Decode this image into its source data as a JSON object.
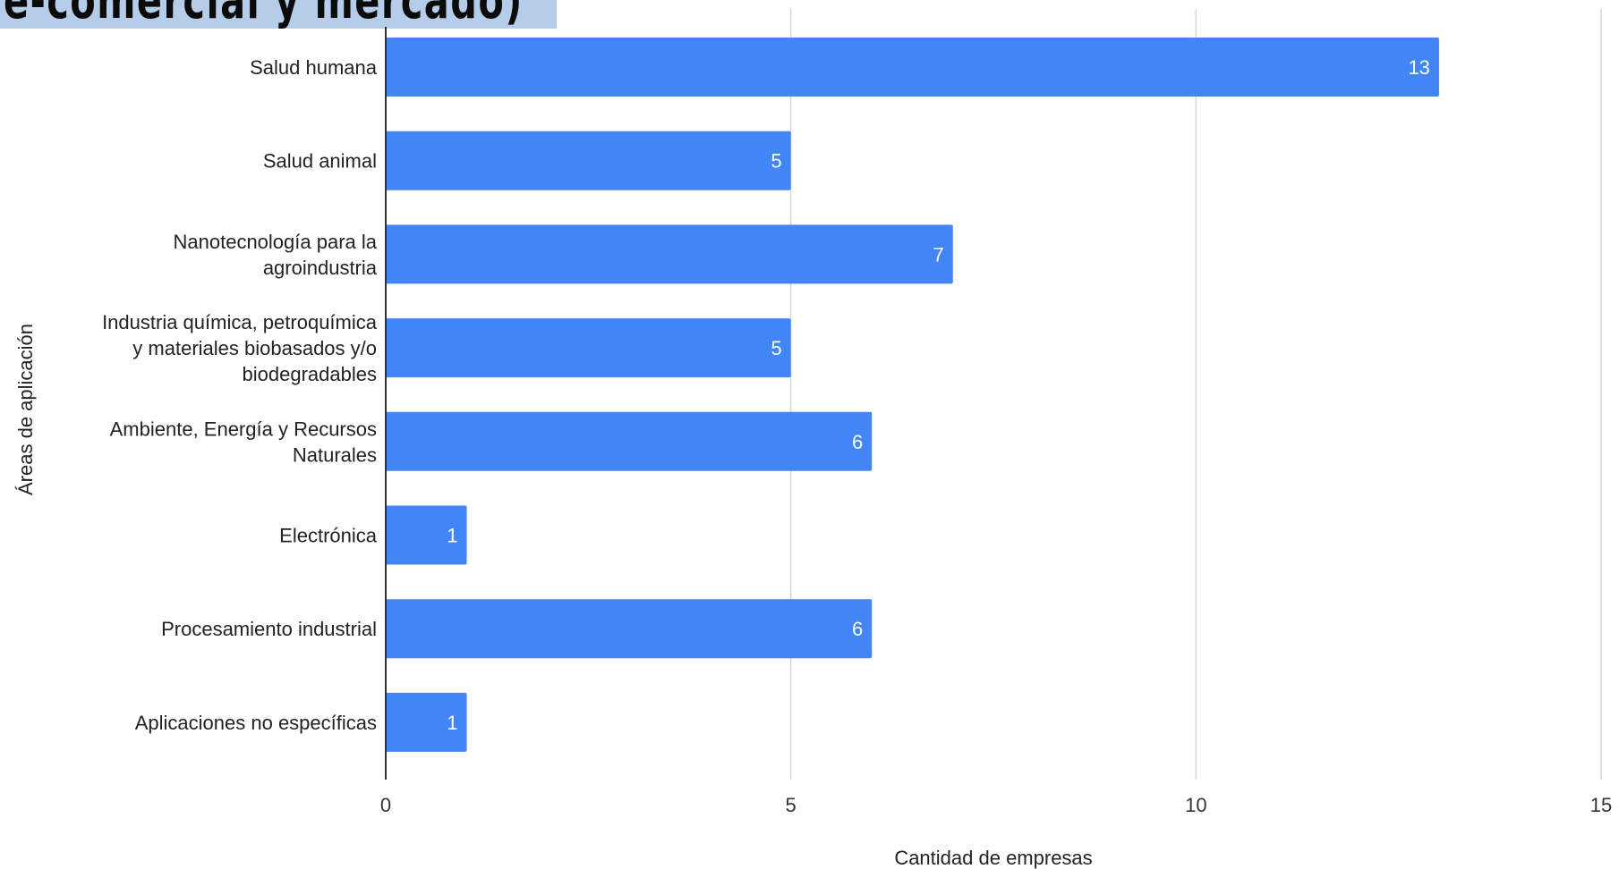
{
  "title": {
    "text": "e-comercial y mercado)"
  },
  "chart_data": {
    "type": "bar",
    "orientation": "horizontal",
    "categories": [
      "Salud humana",
      "Salud animal",
      "Nanotecnología para la agroindustria",
      "Industria química, petroquímica y materiales biobasados y/o biodegradables",
      "Ambiente, Energía y Recursos Naturales",
      "Electrónica",
      "Procesamiento industrial",
      "Aplicaciones no específicas"
    ],
    "category_lines": [
      [
        "Salud humana"
      ],
      [
        "Salud animal"
      ],
      [
        "Nanotecnología para la",
        "agroindustria"
      ],
      [
        "Industria química, petroquímica",
        "y materiales biobasados y/o",
        "biodegradables"
      ],
      [
        "Ambiente, Energía y Recursos",
        "Naturales"
      ],
      [
        "Electrónica"
      ],
      [
        "Procesamiento industrial"
      ],
      [
        "Aplicaciones no específicas"
      ]
    ],
    "values": [
      13,
      5,
      7,
      5,
      6,
      1,
      6,
      1
    ],
    "data_labels": [
      "13",
      "5",
      "7",
      "5",
      "6",
      "1",
      "6",
      "1"
    ],
    "xlabel": "Cantidad de empresas",
    "ylabel": "Áreas de aplicación",
    "xlim": [
      0,
      15
    ],
    "x_ticks": [
      0,
      5,
      10,
      15
    ],
    "x_tick_labels": [
      "0",
      "5",
      "10",
      "15"
    ],
    "grid": "vertical",
    "legend": "none",
    "bar_color": "#4285f4"
  }
}
